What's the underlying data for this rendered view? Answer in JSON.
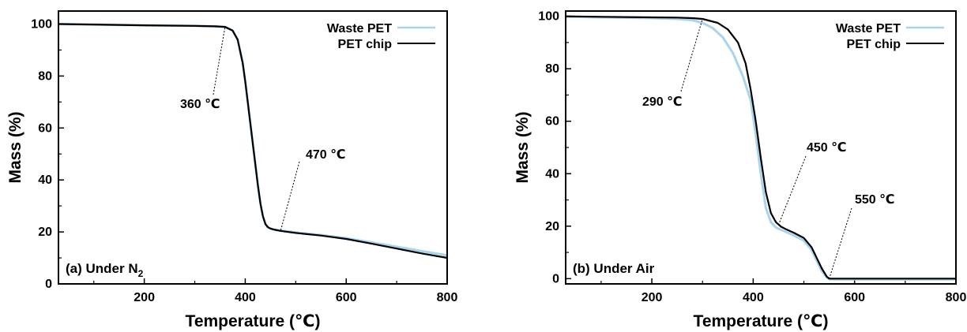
{
  "chart_data": [
    {
      "type": "line",
      "panel_label": "(a) Under N",
      "panel_label_sub": "2",
      "xlabel": "Temperature (℃)",
      "ylabel": "Mass (%)",
      "xlim": [
        30,
        800
      ],
      "ylim": [
        0,
        105
      ],
      "xticks": [
        200,
        400,
        600,
        800
      ],
      "yticks": [
        0,
        20,
        40,
        60,
        80,
        100
      ],
      "legend_position": "top-right",
      "series": [
        {
          "name": "Waste PET",
          "color": "#a9d4ee",
          "x": [
            30,
            100,
            200,
            300,
            340,
            360,
            375,
            385,
            395,
            400,
            405,
            410,
            415,
            420,
            425,
            430,
            435,
            440,
            445,
            450,
            455,
            460,
            470,
            500,
            550,
            600,
            650,
            700,
            750,
            800
          ],
          "y": [
            100,
            99.8,
            99.5,
            99.3,
            99.1,
            98.9,
            97.5,
            94,
            85,
            78,
            70,
            62,
            54,
            46,
            38,
            31,
            26,
            23,
            21.8,
            21.3,
            21,
            20.8,
            20.5,
            19.8,
            18.8,
            17.6,
            16,
            14.3,
            12.6,
            11
          ]
        },
        {
          "name": "PET chip",
          "color": "#000000",
          "x": [
            30,
            100,
            200,
            300,
            340,
            360,
            375,
            385,
            395,
            400,
            405,
            410,
            415,
            420,
            425,
            430,
            435,
            440,
            445,
            450,
            455,
            460,
            470,
            500,
            550,
            600,
            650,
            700,
            750,
            800
          ],
          "y": [
            100,
            99.8,
            99.5,
            99.3,
            99.1,
            98.9,
            97.5,
            94,
            85,
            78,
            70,
            62,
            54,
            46,
            38,
            31,
            26,
            23,
            21.8,
            21.3,
            21,
            20.8,
            20.4,
            19.6,
            18.6,
            17.3,
            15.5,
            13.6,
            11.7,
            10
          ]
        }
      ],
      "annotations": [
        {
          "text": "360 ℃",
          "x": 360,
          "y": 98.9
        },
        {
          "text": "470 ℃",
          "x": 470,
          "y": 20.4
        }
      ]
    },
    {
      "type": "line",
      "panel_label": "(b) Under Air",
      "panel_label_sub": "",
      "xlabel": "Temperature (℃)",
      "ylabel": "Mass (%)",
      "xlim": [
        30,
        800
      ],
      "ylim": [
        -2,
        102
      ],
      "xticks": [
        200,
        400,
        600,
        800
      ],
      "yticks": [
        0,
        20,
        40,
        60,
        80,
        100
      ],
      "legend_position": "top-right",
      "series": [
        {
          "name": "Waste PET",
          "color": "#a9d4ee",
          "x": [
            30,
            100,
            200,
            250,
            280,
            300,
            320,
            340,
            360,
            380,
            395,
            405,
            415,
            425,
            435,
            445,
            455,
            465,
            480,
            500,
            515,
            525,
            535,
            545,
            550,
            560,
            600,
            700,
            800
          ],
          "y": [
            99.8,
            99.6,
            99.3,
            99,
            98.5,
            97.5,
            95.5,
            92,
            86,
            77,
            68,
            55,
            40,
            27,
            21.5,
            19.5,
            18.6,
            17.8,
            16.5,
            14.5,
            11,
            7,
            3,
            0.5,
            -0.2,
            -0.3,
            -0.3,
            -0.3,
            -0.3
          ]
        },
        {
          "name": "PET chip",
          "color": "#000000",
          "x": [
            30,
            100,
            200,
            250,
            280,
            300,
            330,
            350,
            370,
            385,
            395,
            405,
            415,
            425,
            435,
            445,
            455,
            465,
            480,
            500,
            515,
            525,
            535,
            545,
            550,
            560,
            600,
            700,
            800
          ],
          "y": [
            100,
            99.8,
            99.6,
            99.5,
            99.3,
            99,
            97.5,
            95,
            90,
            82,
            72,
            60,
            46,
            33,
            25,
            21.5,
            19.8,
            18.8,
            17.5,
            15.5,
            12,
            8,
            4,
            0.8,
            0,
            0,
            0,
            0,
            0
          ]
        }
      ],
      "annotations": [
        {
          "text": "290 ℃",
          "x": 300,
          "y": 99
        },
        {
          "text": "450 ℃",
          "x": 450,
          "y": 20.5
        },
        {
          "text": "550 ℃",
          "x": 550,
          "y": 0
        }
      ]
    }
  ]
}
